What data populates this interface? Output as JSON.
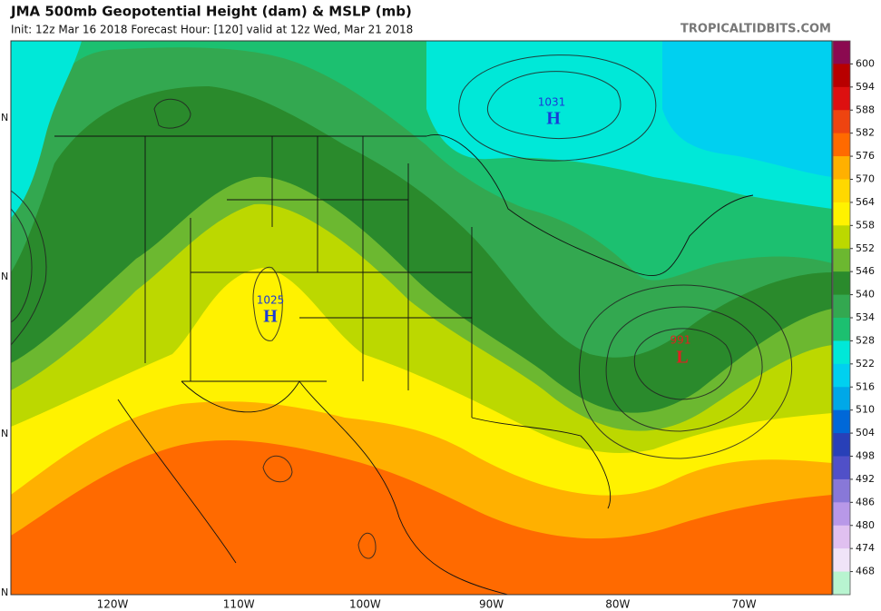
{
  "header": {
    "title": "JMA 500mb Geopotential Height (dam) & MSLP (mb)",
    "subtitle": "Init: 12z Mar 16 2018   Forecast Hour: [120]   valid at 12z Wed, Mar 21 2018",
    "brand": "TROPICALTIDBITS.COM"
  },
  "map": {
    "lon_labels": [
      "120W",
      "110W",
      "100W",
      "90W",
      "80W",
      "70W"
    ],
    "lat_labels": [
      "N",
      "N",
      "N",
      "N"
    ],
    "centers": [
      {
        "pressure": "1031",
        "symbol": "H"
      },
      {
        "pressure": "1025",
        "symbol": "H"
      },
      {
        "pressure": "991",
        "symbol": "L"
      }
    ]
  },
  "colorbar": {
    "labels": [
      600,
      594,
      588,
      582,
      576,
      570,
      564,
      558,
      552,
      546,
      540,
      534,
      528,
      522,
      516,
      510,
      504,
      498,
      492,
      486,
      480,
      474,
      468
    ],
    "colors": [
      "#8b0a50",
      "#b80000",
      "#dd1010",
      "#ee4410",
      "#ff6a00",
      "#ffb000",
      "#ffd800",
      "#fff200",
      "#bcd800",
      "#6cb830",
      "#2a8a2c",
      "#33a850",
      "#1cc070",
      "#00e8d8",
      "#00d0f0",
      "#00a8e8",
      "#0068d8",
      "#2840b8",
      "#5050c8",
      "#8878d8",
      "#b898e8",
      "#e0c0f0",
      "#f0e4f8",
      "#b8f4d0"
    ]
  }
}
